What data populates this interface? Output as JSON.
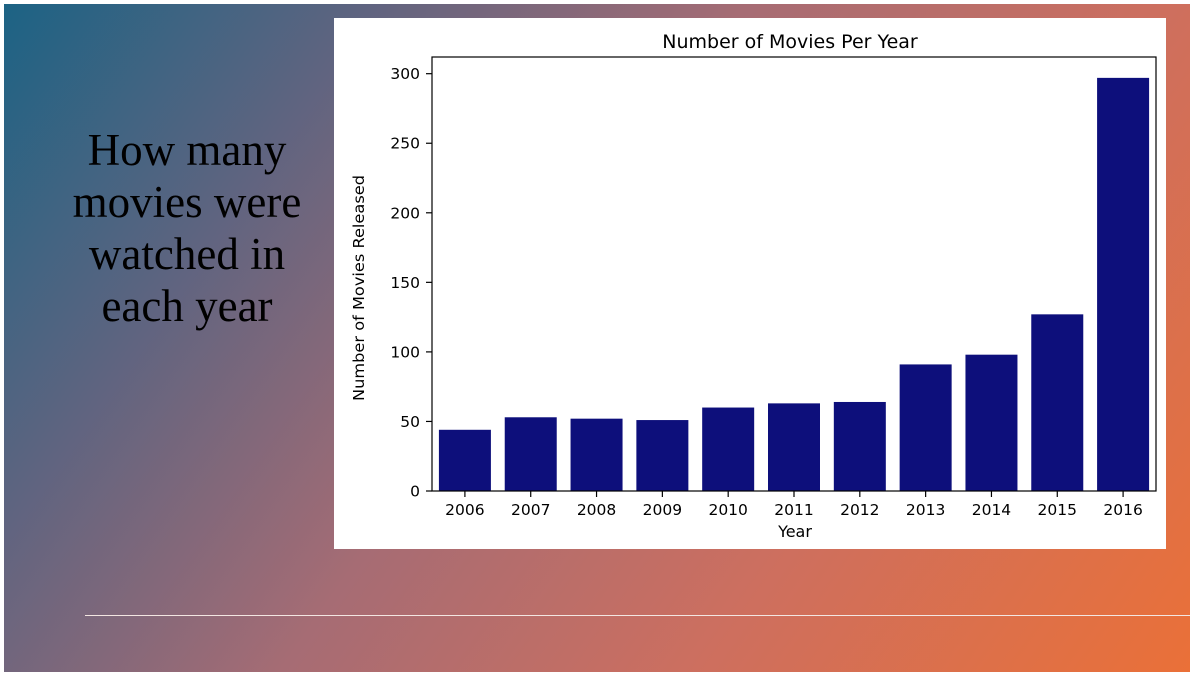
{
  "slide": {
    "headline": "How many movies were watched in each year"
  },
  "colors": {
    "bar": "#0d0f7b",
    "background_start": "#1c6384",
    "background_end": "#ea7038"
  },
  "chart_data": {
    "type": "bar",
    "title": "Number of Movies Per Year",
    "xlabel": "Year",
    "ylabel": "Number of Movies Released",
    "categories": [
      "2006",
      "2007",
      "2008",
      "2009",
      "2010",
      "2011",
      "2012",
      "2013",
      "2014",
      "2015",
      "2016"
    ],
    "values": [
      44,
      53,
      52,
      51,
      60,
      63,
      64,
      91,
      98,
      127,
      297
    ],
    "ylim": [
      0,
      312
    ],
    "yticks": [
      0,
      50,
      100,
      150,
      200,
      250,
      300
    ],
    "grid": false,
    "legend": "none"
  }
}
